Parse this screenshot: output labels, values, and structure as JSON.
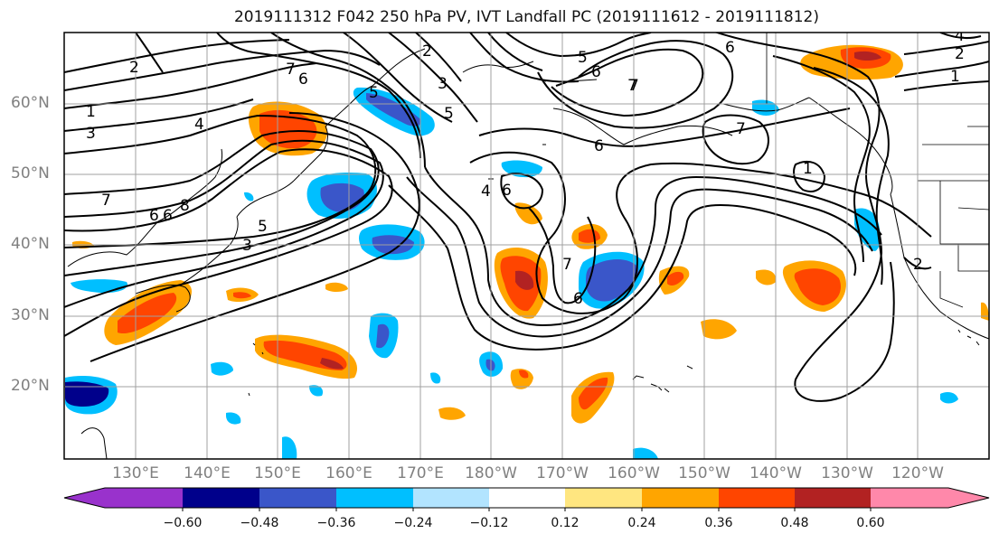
{
  "title": "2019111312 F042 250 hPa PV, IVT Landfall PC (2019111612 - 2019111812)",
  "lat_labels": [
    "60°N",
    "50°N",
    "40°N",
    "30°N",
    "20°N"
  ],
  "lon_labels": [
    "130°E",
    "140°E",
    "150°E",
    "160°E",
    "170°E",
    "180°W",
    "170°W",
    "160°W",
    "150°W",
    "140°W",
    "130°W",
    "120°W"
  ],
  "colorbar": {
    "colors": [
      "#9932cc",
      "#00008b",
      "#3a56c9",
      "#00bfff",
      "#b2e4ff",
      "#ffffff",
      "#ffe680",
      "#ffa500",
      "#ff4500",
      "#b22222",
      "#ff88aa"
    ],
    "tick_labels": [
      "−0.60",
      "−0.48",
      "−0.36",
      "−0.24",
      "−0.12",
      "0.12",
      "0.24",
      "0.36",
      "0.48",
      "0.60"
    ]
  },
  "contour_labels": [
    "2",
    "1",
    "3",
    "4",
    "6",
    "7",
    "8",
    "5",
    "6",
    "3",
    "7",
    "6",
    "2",
    "5",
    "3",
    "5",
    "6",
    "7",
    "5",
    "6",
    "4",
    "6",
    "7",
    "6",
    "7",
    "1",
    "1",
    "2",
    "4",
    "7",
    "2"
  ],
  "colors": {
    "contour": "#000000",
    "coast": "#000000",
    "grid": "#a0a0a0",
    "axis_label": "#808080"
  }
}
